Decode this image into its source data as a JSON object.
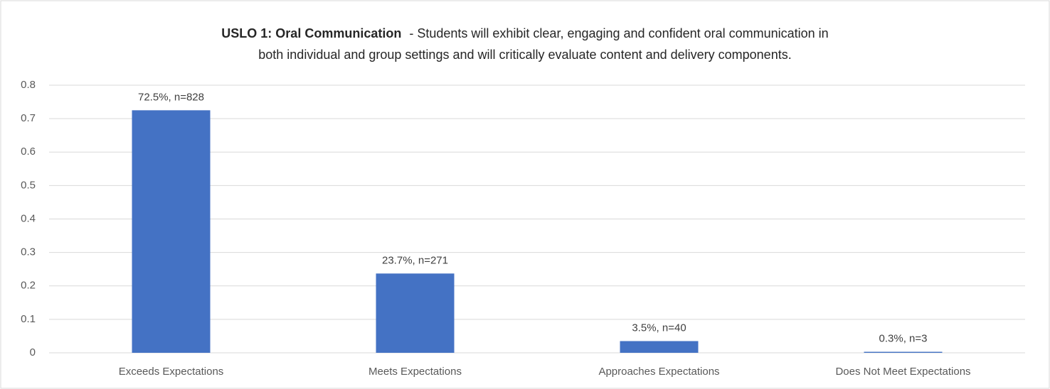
{
  "chart_data": {
    "type": "bar",
    "title": "USLO 1: Oral Communication",
    "subtitle": [
      "- Students will exhibit clear, engaging and confident oral communication in",
      "both individual and group settings and will critically evaluate content and delivery components."
    ],
    "categories": [
      "Exceeds Expectations",
      "Meets Expectations",
      "Approaches Expectations",
      "Does Not Meet Expectations"
    ],
    "values": [
      0.725,
      0.237,
      0.035,
      0.003
    ],
    "value_labels": [
      "72.5%, n=828",
      "23.7%, n=271",
      "3.5%, n=40",
      "0.3%, n=3"
    ],
    "color": "#4472c4",
    "ylim": [
      0,
      0.8
    ],
    "yticks": [
      0,
      0.1,
      0.2,
      0.3,
      0.4,
      0.5,
      0.6,
      0.7,
      0.8
    ],
    "grid": true
  }
}
